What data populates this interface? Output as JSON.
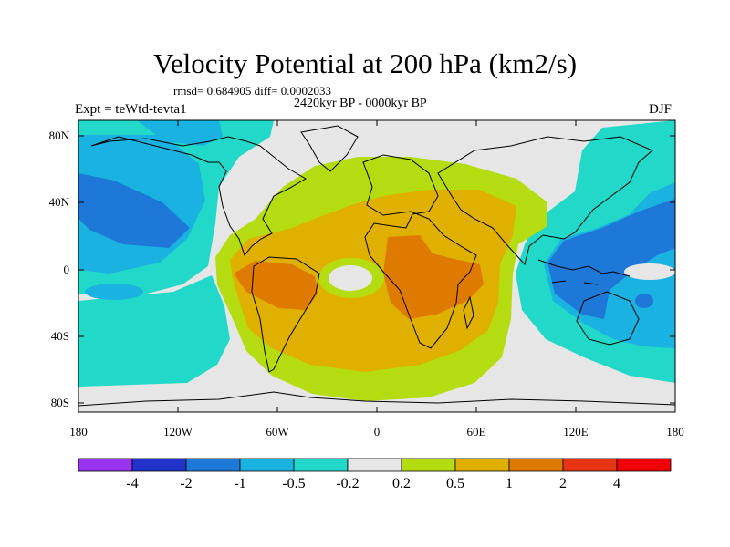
{
  "title": "Velocity Potential at 200 hPa (km2/s)",
  "stats": "rmsd= 0.684905 diff= 0.0002033",
  "period": "2420kyr BP - 0000kyr BP",
  "experiment": "Expt = teWtd-tevta1",
  "season": "DJF",
  "lat_labels": [
    "80N",
    "40N",
    "0",
    "40S",
    "80S"
  ],
  "lon_labels": [
    "180",
    "120W",
    "60W",
    "0",
    "60E",
    "120E",
    "180"
  ],
  "colorbar": {
    "labels": [
      "-4",
      "-2",
      "-1",
      "-0.5",
      "-0.2",
      "0.2",
      "0.5",
      "1",
      "2",
      "4"
    ],
    "colors": [
      "#9933ee",
      "#2233cc",
      "#1e78d8",
      "#1ab2e0",
      "#22d8c8",
      "#e6e6e6",
      "#b4dc10",
      "#e0b000",
      "#de7a00",
      "#e63414",
      "#f00000"
    ]
  }
}
